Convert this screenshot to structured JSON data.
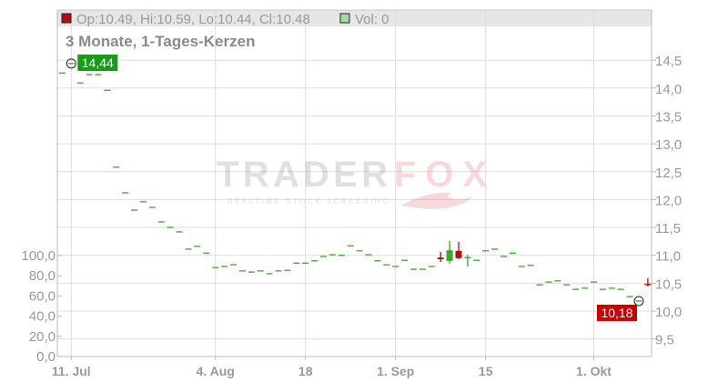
{
  "header": {
    "ohlc_text": "Op:10.49, Hi:10.59, Lo:10.44, Cl:10.48",
    "ohlc_swatch_color": "#b01010",
    "volume_text": "Vol: 0",
    "volume_swatch_color": "#a8d8a8"
  },
  "watermark": {
    "text_left": "TRADER",
    "text_right": "FOX",
    "tagline": "REALTIME STOCK SCREENING"
  },
  "chart_data": {
    "type": "candlestick",
    "title": "3 Monate, 1-Tages-Kerzen",
    "price_axis": {
      "position": "right",
      "range": [
        9.25,
        14.95
      ],
      "ticks": [
        "9,5",
        "10,0",
        "10,5",
        "11,0",
        "11,5",
        "12,0",
        "12,5",
        "13,0",
        "13,5",
        "14,0",
        "14,5"
      ],
      "tick_values": [
        9.5,
        10,
        10.5,
        11,
        11.5,
        12,
        12.5,
        13,
        13.5,
        14,
        14.5
      ]
    },
    "volume_axis": {
      "position": "left",
      "range": [
        0,
        100
      ],
      "ticks": [
        "0,0",
        "20,0",
        "40,0",
        "60,0",
        "80,0",
        "100,0"
      ],
      "tick_values": [
        0,
        20,
        40,
        60,
        80,
        100
      ]
    },
    "x_ticks": [
      {
        "label": "11. Jul",
        "bar": 1
      },
      {
        "label": "4. Aug",
        "bar": 17
      },
      {
        "label": "18",
        "bar": 27
      },
      {
        "label": "1. Sep",
        "bar": 37
      },
      {
        "label": "15",
        "bar": 47
      },
      {
        "label": "1. Okt",
        "bar": 59
      }
    ],
    "grid": true,
    "up_color": "#3aa82a",
    "down_color": "#b01010",
    "high_marker": {
      "label": "14,44",
      "bar": 1,
      "value": 14.44,
      "color": "#1a9a1a"
    },
    "low_marker": {
      "label": "10,18",
      "bar": 64,
      "value": 10.18,
      "color": "#cc0000"
    },
    "closes": [
      14.27,
      14.44,
      14.09,
      14.24,
      14.24,
      13.96,
      12.58,
      12.12,
      11.81,
      11.96,
      11.86,
      11.6,
      11.5,
      11.42,
      11.11,
      11.16,
      11.04,
      10.78,
      10.8,
      10.83,
      10.72,
      10.7,
      10.72,
      10.67,
      10.72,
      10.73,
      10.86,
      10.86,
      10.9,
      10.98,
      11.01,
      11.0,
      11.17,
      11.08,
      11.01,
      10.9,
      10.83,
      10.8,
      10.91,
      10.75,
      10.75,
      10.8,
      null,
      null,
      null,
      null,
      10.91,
      11.08,
      11.11,
      10.98,
      11.04,
      10.8,
      10.82,
      10.47,
      10.52,
      10.54,
      10.47,
      10.39,
      10.41,
      10.52,
      10.39,
      10.41,
      10.39,
      10.26,
      10.18,
      null
    ],
    "candles": [
      {
        "bar": 42,
        "o": 10.96,
        "h": 11.06,
        "l": 10.88,
        "c": 10.93
      },
      {
        "bar": 43,
        "o": 10.9,
        "h": 11.26,
        "l": 10.85,
        "c": 11.09
      },
      {
        "bar": 44,
        "o": 11.08,
        "h": 11.24,
        "l": 10.93,
        "c": 10.95
      },
      {
        "bar": 45,
        "o": 10.95,
        "h": 11.01,
        "l": 10.8,
        "c": 10.97
      },
      {
        "bar": 65,
        "o": 10.49,
        "h": 10.59,
        "l": 10.44,
        "c": 10.48
      }
    ],
    "volumes": []
  }
}
